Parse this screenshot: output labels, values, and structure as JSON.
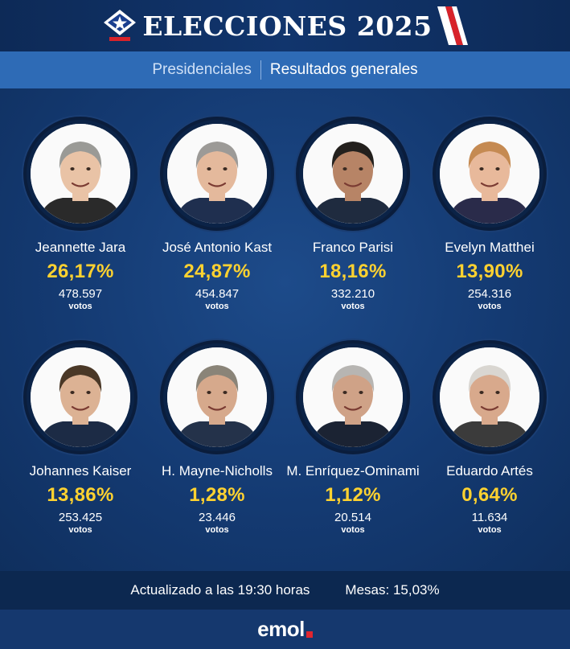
{
  "header": {
    "title": "ELECCIONES 2025",
    "accent_red": "#d8232a",
    "accent_blue": "#1a3f8f"
  },
  "subheader": {
    "tab_a": "Presidenciales",
    "tab_b": "Resultados generales"
  },
  "candidates": [
    {
      "name": "Jeannette Jara",
      "pct": "26,17%",
      "votes": "478.597",
      "votes_label": "votos",
      "hair": "#9a9a96",
      "skin": "#e9c3a6",
      "shirt": "#2a2a2a"
    },
    {
      "name": "José Antonio Kast",
      "pct": "24,87%",
      "votes": "454.847",
      "votes_label": "votos",
      "hair": "#9c9a97",
      "skin": "#e4b99c",
      "shirt": "#1f2f4f"
    },
    {
      "name": "Franco Parisi",
      "pct": "18,16%",
      "votes": "332.210",
      "votes_label": "votos",
      "hair": "#23201d",
      "skin": "#b78466",
      "shirt": "#1f2b3f"
    },
    {
      "name": "Evelyn Matthei",
      "pct": "13,90%",
      "votes": "254.316",
      "votes_label": "votos",
      "hair": "#c58a52",
      "skin": "#e8b99b",
      "shirt": "#2a2b4a"
    },
    {
      "name": "Johannes Kaiser",
      "pct": "13,86%",
      "votes": "253.425",
      "votes_label": "votos",
      "hair": "#4a3827",
      "skin": "#dcb294",
      "shirt": "#1c2b45"
    },
    {
      "name": "H. Mayne-Nicholls",
      "pct": "1,28%",
      "votes": "23.446",
      "votes_label": "votos",
      "hair": "#8a8478",
      "skin": "#d6a98c",
      "shirt": "#24324a"
    },
    {
      "name": "M. Enríquez-Ominami",
      "pct": "1,12%",
      "votes": "20.514",
      "votes_label": "votos",
      "hair": "#b7b5b2",
      "skin": "#cfa287",
      "shirt": "#1b2333"
    },
    {
      "name": "Eduardo Artés",
      "pct": "0,64%",
      "votes": "11.634",
      "votes_label": "votos",
      "hair": "#d9d6d1",
      "skin": "#d8a98c",
      "shirt": "#3b3b3b"
    }
  ],
  "footer": {
    "updated": "Actualizado a las 19:30 horas",
    "mesas": "Mesas: 15,03%"
  },
  "brand": {
    "word": "emol",
    "dot_color": "#e0262f"
  }
}
